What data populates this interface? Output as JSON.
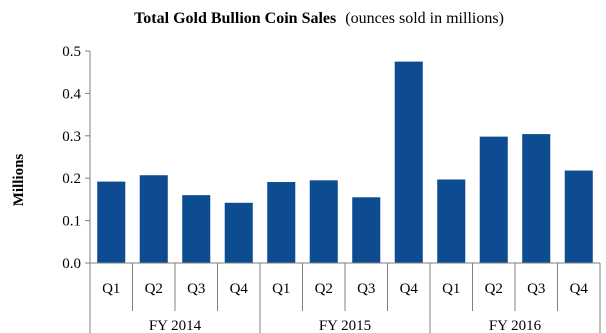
{
  "chart_data": {
    "type": "bar",
    "title": "Total Gold Bullion Coin Sales",
    "subtitle": "(ounces sold in millions)",
    "ylabel": "Millions",
    "xlabel": "",
    "ylim": [
      0,
      0.5
    ],
    "yticks": [
      "0.0",
      "0.1",
      "0.2",
      "0.3",
      "0.4",
      "0.5"
    ],
    "grid": false,
    "legend": "none",
    "bar_color": "#0e4c92",
    "groups": [
      {
        "label": "FY 2014",
        "categories": [
          "Q1",
          "Q2",
          "Q3",
          "Q4"
        ],
        "values": [
          0.192,
          0.207,
          0.16,
          0.142
        ]
      },
      {
        "label": "FY 2015",
        "categories": [
          "Q1",
          "Q2",
          "Q3",
          "Q4"
        ],
        "values": [
          0.191,
          0.195,
          0.155,
          0.475
        ]
      },
      {
        "label": "FY 2016",
        "categories": [
          "Q1",
          "Q2",
          "Q3",
          "Q4"
        ],
        "values": [
          0.197,
          0.298,
          0.304,
          0.218
        ]
      }
    ]
  }
}
